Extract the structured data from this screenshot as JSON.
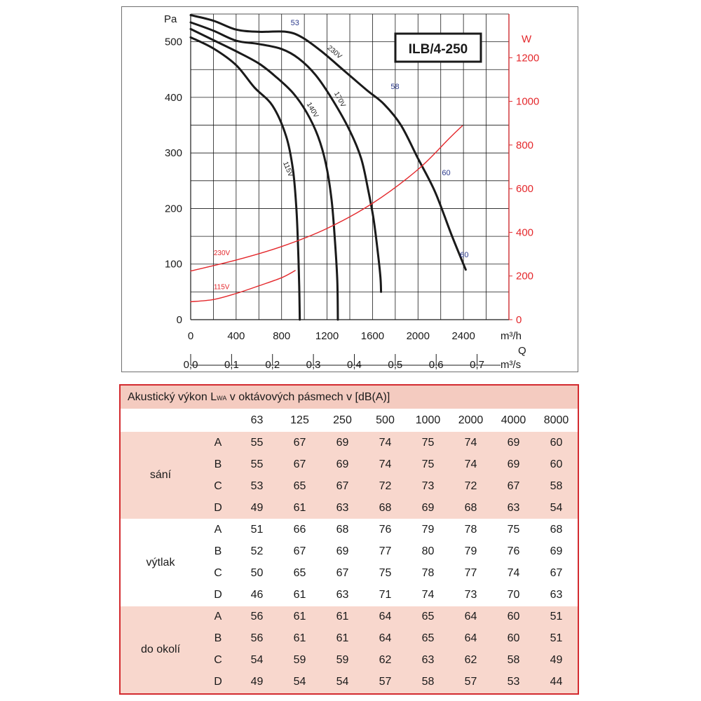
{
  "chart_data": {
    "type": "line",
    "title": "ILB/4-250",
    "y_axis": {
      "label": "Pa",
      "range": [
        0,
        550
      ],
      "ticks": [
        0,
        100,
        200,
        300,
        400,
        500
      ]
    },
    "y2_axis": {
      "label": "W",
      "range": [
        0,
        1400
      ],
      "ticks": [
        0,
        200,
        400,
        600,
        800,
        1000,
        1200
      ],
      "color": "#e4282c"
    },
    "x_axis": {
      "unit": "m³/h",
      "range": [
        0,
        2800
      ],
      "ticks": [
        0,
        400,
        800,
        1200,
        1600,
        2000,
        2400
      ]
    },
    "x2_axis": {
      "label": "Q",
      "unit": "m³/s",
      "ticks": [
        "0,0",
        "0,1",
        "0,2",
        "0,3",
        "0,4",
        "0,5",
        "0,6",
        "0,7"
      ],
      "tick_values": [
        0,
        360,
        720,
        1080,
        1440,
        1800,
        2160,
        2520
      ]
    },
    "grid": true,
    "series": [
      {
        "name": "230V",
        "axis": "pressure",
        "color": "#1a1a1a",
        "points": [
          [
            0,
            548
          ],
          [
            200,
            538
          ],
          [
            400,
            522
          ],
          [
            600,
            518
          ],
          [
            840,
            518
          ],
          [
            980,
            508
          ],
          [
            1150,
            483
          ],
          [
            1350,
            448
          ],
          [
            1550,
            413
          ],
          [
            1700,
            388
          ],
          [
            1850,
            350
          ],
          [
            2000,
            290
          ],
          [
            2150,
            230
          ],
          [
            2300,
            150
          ],
          [
            2420,
            90
          ]
        ]
      },
      {
        "name": "170V",
        "axis": "pressure",
        "color": "#1a1a1a",
        "points": [
          [
            0,
            535
          ],
          [
            200,
            520
          ],
          [
            400,
            502
          ],
          [
            600,
            496
          ],
          [
            800,
            487
          ],
          [
            950,
            470
          ],
          [
            1100,
            440
          ],
          [
            1250,
            395
          ],
          [
            1400,
            340
          ],
          [
            1500,
            290
          ],
          [
            1560,
            235
          ],
          [
            1610,
            180
          ],
          [
            1650,
            115
          ],
          [
            1670,
            75
          ],
          [
            1675,
            50
          ]
        ]
      },
      {
        "name": "140V",
        "axis": "pressure",
        "color": "#1a1a1a",
        "points": [
          [
            0,
            523
          ],
          [
            200,
            503
          ],
          [
            400,
            483
          ],
          [
            600,
            461
          ],
          [
            750,
            437
          ],
          [
            900,
            408
          ],
          [
            1020,
            373
          ],
          [
            1120,
            330
          ],
          [
            1190,
            280
          ],
          [
            1240,
            215
          ],
          [
            1270,
            140
          ],
          [
            1290,
            70
          ],
          [
            1295,
            0
          ]
        ]
      },
      {
        "name": "115V",
        "axis": "pressure",
        "color": "#1a1a1a",
        "points": [
          [
            0,
            508
          ],
          [
            200,
            488
          ],
          [
            400,
            458
          ],
          [
            560,
            418
          ],
          [
            720,
            385
          ],
          [
            840,
            330
          ],
          [
            900,
            270
          ],
          [
            930,
            200
          ],
          [
            945,
            130
          ],
          [
            955,
            60
          ],
          [
            960,
            0
          ]
        ]
      },
      {
        "name": "230V",
        "axis": "power",
        "color": "#e4282c",
        "points": [
          [
            0,
            223
          ],
          [
            400,
            273
          ],
          [
            800,
            335
          ],
          [
            1200,
            418
          ],
          [
            1600,
            533
          ],
          [
            2000,
            688
          ],
          [
            2280,
            833
          ],
          [
            2390,
            888
          ]
        ]
      },
      {
        "name": "115V",
        "axis": "power",
        "color": "#e4282c",
        "points": [
          [
            0,
            82
          ],
          [
            200,
            92
          ],
          [
            400,
            120
          ],
          [
            600,
            155
          ],
          [
            800,
            192
          ],
          [
            920,
            225
          ]
        ]
      }
    ],
    "annotations": [
      {
        "text": "53",
        "x": 880,
        "y": 530
      },
      {
        "text": "58",
        "x": 1760,
        "y": 415
      },
      {
        "text": "60",
        "x": 2210,
        "y": 260
      },
      {
        "text": "60",
        "x": 2370,
        "y": 112
      }
    ]
  },
  "table": {
    "title_pre": "Akustický výkon L",
    "title_sub": "WA",
    "title_post": " v oktávových pásmech v [dB(A)]",
    "frequencies": [
      "63",
      "125",
      "250",
      "500",
      "1000",
      "2000",
      "4000",
      "8000"
    ],
    "groups": [
      {
        "name": "sání",
        "rows": [
          {
            "label": "A",
            "values": [
              "55",
              "67",
              "69",
              "74",
              "75",
              "74",
              "69",
              "60"
            ]
          },
          {
            "label": "B",
            "values": [
              "55",
              "67",
              "69",
              "74",
              "75",
              "74",
              "69",
              "60"
            ]
          },
          {
            "label": "C",
            "values": [
              "53",
              "65",
              "67",
              "72",
              "73",
              "72",
              "67",
              "58"
            ]
          },
          {
            "label": "D",
            "values": [
              "49",
              "61",
              "63",
              "68",
              "69",
              "68",
              "63",
              "54"
            ]
          }
        ]
      },
      {
        "name": "výtlak",
        "rows": [
          {
            "label": "A",
            "values": [
              "51",
              "66",
              "68",
              "76",
              "79",
              "78",
              "75",
              "68"
            ]
          },
          {
            "label": "B",
            "values": [
              "52",
              "67",
              "69",
              "77",
              "80",
              "79",
              "76",
              "69"
            ]
          },
          {
            "label": "C",
            "values": [
              "50",
              "65",
              "67",
              "75",
              "78",
              "77",
              "74",
              "67"
            ]
          },
          {
            "label": "D",
            "values": [
              "46",
              "61",
              "63",
              "71",
              "74",
              "73",
              "70",
              "63"
            ]
          }
        ]
      },
      {
        "name": "do okolí",
        "rows": [
          {
            "label": "A",
            "values": [
              "56",
              "61",
              "61",
              "64",
              "65",
              "64",
              "60",
              "51"
            ]
          },
          {
            "label": "B",
            "values": [
              "56",
              "61",
              "61",
              "64",
              "65",
              "64",
              "60",
              "51"
            ]
          },
          {
            "label": "C",
            "values": [
              "54",
              "59",
              "59",
              "62",
              "63",
              "62",
              "58",
              "49"
            ]
          },
          {
            "label": "D",
            "values": [
              "49",
              "54",
              "54",
              "57",
              "58",
              "57",
              "53",
              "44"
            ]
          }
        ]
      }
    ]
  },
  "colors": {
    "grid": "#1a1a1a",
    "power": "#e4282c",
    "efficiency": "#2b3a8c",
    "table_border": "#d32a2f",
    "table_shade": "#f8d7cd",
    "table_title": "#f4cbc0"
  }
}
